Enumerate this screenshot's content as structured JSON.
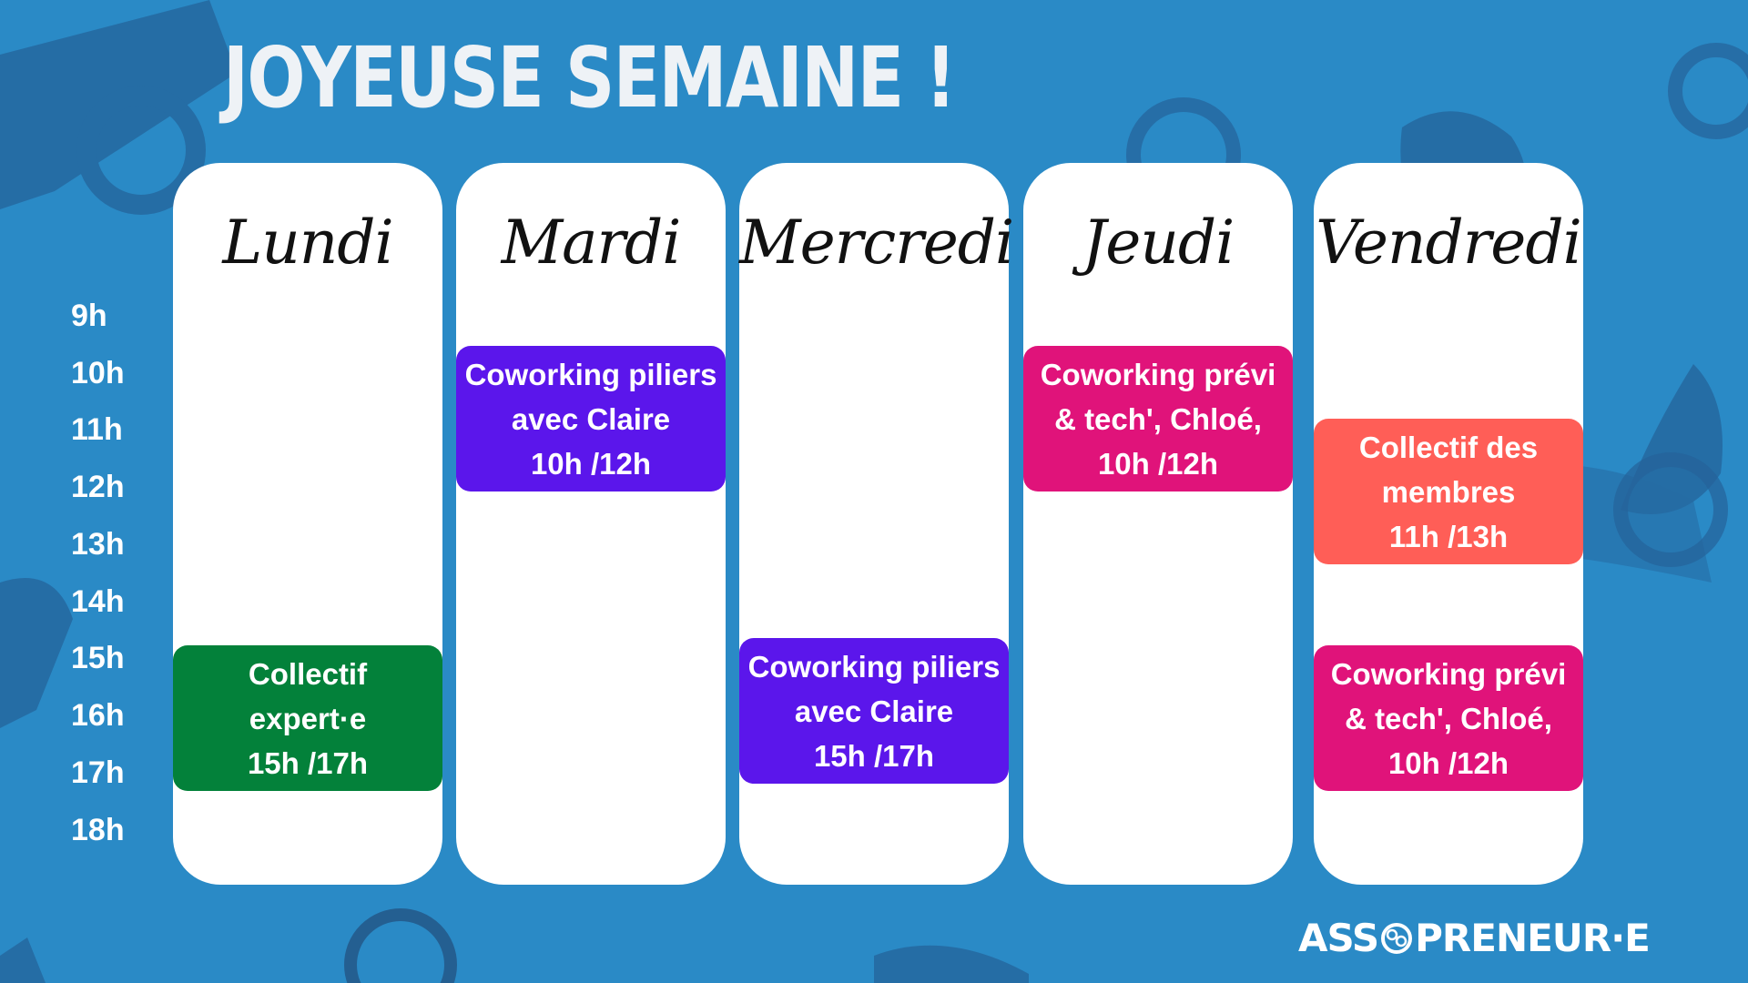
{
  "title": "JOYEUSE SEMAINE !",
  "hours": [
    "9h",
    "10h",
    "11h",
    "12h",
    "13h",
    "14h",
    "15h",
    "16h",
    "17h",
    "18h"
  ],
  "days": [
    {
      "name": "Lundi",
      "events": [
        {
          "lines": [
            "Collectif",
            "expert·e",
            "15h /17h"
          ],
          "color": "#03813a"
        }
      ]
    },
    {
      "name": "Mardi",
      "events": [
        {
          "lines": [
            "Coworking piliers",
            "avec Claire",
            "10h /12h"
          ],
          "color": "#5b16eb"
        }
      ]
    },
    {
      "name": "Mercredi",
      "events": [
        {
          "lines": [
            "Coworking piliers",
            "avec Claire",
            "15h /17h"
          ],
          "color": "#5b16eb"
        }
      ]
    },
    {
      "name": "Jeudi",
      "events": [
        {
          "lines": [
            "Coworking prévi",
            "& tech',  Chloé,",
            "10h /12h"
          ],
          "color": "#e0137a"
        }
      ]
    },
    {
      "name": "Vendredi",
      "events": [
        {
          "lines": [
            "Collectif des",
            "membres",
            "11h /13h"
          ],
          "color": "#ff5e57"
        },
        {
          "lines": [
            "Coworking prévi",
            "& tech', Chloé,",
            "10h /12h"
          ],
          "color": "#e0137a"
        }
      ]
    }
  ],
  "logo": {
    "left": "ASS",
    "right": "PRENEUR·E"
  }
}
